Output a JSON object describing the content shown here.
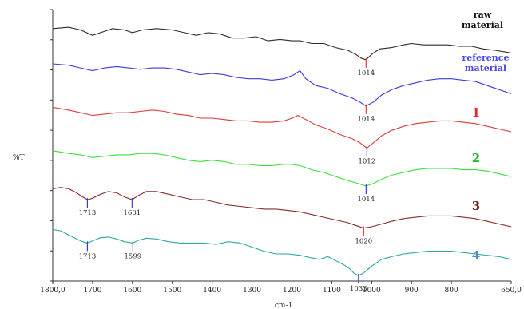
{
  "chart_data": {
    "type": "line",
    "title": "",
    "xlabel": "cm-1",
    "ylabel": "%T",
    "xlim": [
      1800,
      650
    ],
    "x_reversed": true,
    "xticks": [
      "1800,0",
      "1700",
      "1600",
      "1500",
      "1400",
      "1300",
      "1200",
      "1100",
      "1000",
      "900",
      "800",
      "650,0"
    ],
    "xtick_values": [
      1800,
      1700,
      1600,
      1500,
      1400,
      1300,
      1200,
      1100,
      1000,
      900,
      800,
      650
    ],
    "grid": false,
    "series": [
      {
        "name_lines": [
          "raw",
          "material"
        ],
        "color": "#2b2b2b",
        "label_color": "#111111",
        "points": [
          [
            1800,
            0.93
          ],
          [
            1760,
            0.935
          ],
          [
            1730,
            0.925
          ],
          [
            1700,
            0.905
          ],
          [
            1680,
            0.915
          ],
          [
            1650,
            0.93
          ],
          [
            1620,
            0.925
          ],
          [
            1600,
            0.915
          ],
          [
            1575,
            0.925
          ],
          [
            1540,
            0.93
          ],
          [
            1500,
            0.925
          ],
          [
            1470,
            0.915
          ],
          [
            1440,
            0.905
          ],
          [
            1410,
            0.915
          ],
          [
            1380,
            0.91
          ],
          [
            1350,
            0.895
          ],
          [
            1320,
            0.895
          ],
          [
            1290,
            0.9
          ],
          [
            1260,
            0.885
          ],
          [
            1230,
            0.89
          ],
          [
            1200,
            0.885
          ],
          [
            1180,
            0.885
          ],
          [
            1150,
            0.875
          ],
          [
            1120,
            0.875
          ],
          [
            1090,
            0.86
          ],
          [
            1060,
            0.85
          ],
          [
            1040,
            0.835
          ],
          [
            1025,
            0.82
          ],
          [
            1014,
            0.815
          ],
          [
            1000,
            0.835
          ],
          [
            980,
            0.855
          ],
          [
            950,
            0.86
          ],
          [
            920,
            0.87
          ],
          [
            900,
            0.875
          ],
          [
            870,
            0.87
          ],
          [
            840,
            0.87
          ],
          [
            810,
            0.87
          ],
          [
            780,
            0.865
          ],
          [
            750,
            0.865
          ],
          [
            720,
            0.855
          ],
          [
            690,
            0.85
          ],
          [
            650,
            0.84
          ]
        ]
      },
      {
        "name_lines": [
          "reference",
          "material"
        ],
        "color": "#3a3ae0",
        "label_color": "#4a4aee",
        "points": [
          [
            1800,
            0.8
          ],
          [
            1760,
            0.795
          ],
          [
            1730,
            0.785
          ],
          [
            1700,
            0.775
          ],
          [
            1670,
            0.785
          ],
          [
            1640,
            0.79
          ],
          [
            1610,
            0.785
          ],
          [
            1580,
            0.78
          ],
          [
            1550,
            0.785
          ],
          [
            1520,
            0.785
          ],
          [
            1490,
            0.78
          ],
          [
            1460,
            0.77
          ],
          [
            1430,
            0.76
          ],
          [
            1400,
            0.765
          ],
          [
            1370,
            0.76
          ],
          [
            1340,
            0.75
          ],
          [
            1310,
            0.745
          ],
          [
            1280,
            0.745
          ],
          [
            1250,
            0.74
          ],
          [
            1220,
            0.745
          ],
          [
            1195,
            0.76
          ],
          [
            1180,
            0.775
          ],
          [
            1165,
            0.745
          ],
          [
            1140,
            0.72
          ],
          [
            1110,
            0.71
          ],
          [
            1080,
            0.69
          ],
          [
            1050,
            0.675
          ],
          [
            1030,
            0.66
          ],
          [
            1014,
            0.645
          ],
          [
            995,
            0.66
          ],
          [
            975,
            0.685
          ],
          [
            950,
            0.705
          ],
          [
            920,
            0.72
          ],
          [
            890,
            0.73
          ],
          [
            860,
            0.74
          ],
          [
            830,
            0.745
          ],
          [
            800,
            0.745
          ],
          [
            770,
            0.74
          ],
          [
            740,
            0.735
          ],
          [
            710,
            0.72
          ],
          [
            680,
            0.705
          ],
          [
            650,
            0.69
          ]
        ]
      },
      {
        "name_lines": [
          "1"
        ],
        "color": "#e03a3a",
        "label_color": "#e02a2a",
        "points": [
          [
            1800,
            0.64
          ],
          [
            1760,
            0.63
          ],
          [
            1730,
            0.62
          ],
          [
            1700,
            0.61
          ],
          [
            1670,
            0.615
          ],
          [
            1640,
            0.62
          ],
          [
            1610,
            0.62
          ],
          [
            1580,
            0.625
          ],
          [
            1550,
            0.63
          ],
          [
            1520,
            0.625
          ],
          [
            1490,
            0.615
          ],
          [
            1460,
            0.61
          ],
          [
            1430,
            0.6
          ],
          [
            1400,
            0.6
          ],
          [
            1370,
            0.595
          ],
          [
            1340,
            0.59
          ],
          [
            1310,
            0.59
          ],
          [
            1280,
            0.585
          ],
          [
            1250,
            0.585
          ],
          [
            1220,
            0.59
          ],
          [
            1200,
            0.6
          ],
          [
            1185,
            0.61
          ],
          [
            1165,
            0.595
          ],
          [
            1140,
            0.575
          ],
          [
            1110,
            0.56
          ],
          [
            1080,
            0.54
          ],
          [
            1050,
            0.525
          ],
          [
            1030,
            0.51
          ],
          [
            1012,
            0.49
          ],
          [
            995,
            0.51
          ],
          [
            975,
            0.535
          ],
          [
            950,
            0.555
          ],
          [
            920,
            0.57
          ],
          [
            890,
            0.58
          ],
          [
            860,
            0.585
          ],
          [
            830,
            0.59
          ],
          [
            800,
            0.59
          ],
          [
            770,
            0.585
          ],
          [
            740,
            0.58
          ],
          [
            710,
            0.57
          ],
          [
            680,
            0.56
          ],
          [
            650,
            0.55
          ]
        ]
      },
      {
        "name_lines": [
          "2"
        ],
        "color": "#3ae03a",
        "label_color": "#2bb52b",
        "points": [
          [
            1800,
            0.48
          ],
          [
            1760,
            0.47
          ],
          [
            1730,
            0.465
          ],
          [
            1700,
            0.455
          ],
          [
            1670,
            0.46
          ],
          [
            1640,
            0.465
          ],
          [
            1610,
            0.465
          ],
          [
            1580,
            0.47
          ],
          [
            1550,
            0.47
          ],
          [
            1520,
            0.465
          ],
          [
            1490,
            0.455
          ],
          [
            1460,
            0.445
          ],
          [
            1430,
            0.44
          ],
          [
            1400,
            0.445
          ],
          [
            1370,
            0.44
          ],
          [
            1340,
            0.43
          ],
          [
            1310,
            0.43
          ],
          [
            1280,
            0.425
          ],
          [
            1250,
            0.425
          ],
          [
            1220,
            0.43
          ],
          [
            1200,
            0.43
          ],
          [
            1180,
            0.425
          ],
          [
            1150,
            0.41
          ],
          [
            1120,
            0.4
          ],
          [
            1090,
            0.385
          ],
          [
            1060,
            0.37
          ],
          [
            1035,
            0.36
          ],
          [
            1014,
            0.35
          ],
          [
            995,
            0.36
          ],
          [
            975,
            0.375
          ],
          [
            950,
            0.39
          ],
          [
            920,
            0.4
          ],
          [
            890,
            0.41
          ],
          [
            860,
            0.415
          ],
          [
            830,
            0.415
          ],
          [
            800,
            0.415
          ],
          [
            770,
            0.41
          ],
          [
            740,
            0.41
          ],
          [
            710,
            0.405
          ],
          [
            680,
            0.395
          ],
          [
            650,
            0.385
          ]
        ]
      },
      {
        "name_lines": [
          "3"
        ],
        "color": "#8b2a2a",
        "label_color": "#6e1e1e",
        "points": [
          [
            1800,
            0.34
          ],
          [
            1780,
            0.345
          ],
          [
            1760,
            0.34
          ],
          [
            1740,
            0.325
          ],
          [
            1725,
            0.31
          ],
          [
            1713,
            0.3
          ],
          [
            1700,
            0.305
          ],
          [
            1680,
            0.32
          ],
          [
            1660,
            0.33
          ],
          [
            1640,
            0.325
          ],
          [
            1620,
            0.31
          ],
          [
            1601,
            0.3
          ],
          [
            1585,
            0.315
          ],
          [
            1565,
            0.33
          ],
          [
            1540,
            0.33
          ],
          [
            1510,
            0.32
          ],
          [
            1480,
            0.31
          ],
          [
            1450,
            0.3
          ],
          [
            1420,
            0.3
          ],
          [
            1390,
            0.29
          ],
          [
            1360,
            0.28
          ],
          [
            1330,
            0.275
          ],
          [
            1300,
            0.27
          ],
          [
            1270,
            0.265
          ],
          [
            1240,
            0.265
          ],
          [
            1210,
            0.26
          ],
          [
            1180,
            0.255
          ],
          [
            1150,
            0.245
          ],
          [
            1120,
            0.235
          ],
          [
            1090,
            0.225
          ],
          [
            1060,
            0.215
          ],
          [
            1040,
            0.205
          ],
          [
            1020,
            0.195
          ],
          [
            1000,
            0.2
          ],
          [
            975,
            0.21
          ],
          [
            950,
            0.22
          ],
          [
            920,
            0.23
          ],
          [
            890,
            0.235
          ],
          [
            860,
            0.24
          ],
          [
            830,
            0.24
          ],
          [
            800,
            0.24
          ],
          [
            770,
            0.235
          ],
          [
            740,
            0.23
          ],
          [
            710,
            0.22
          ],
          [
            680,
            0.21
          ],
          [
            650,
            0.2
          ]
        ]
      },
      {
        "name_lines": [
          "4"
        ],
        "color": "#2aa8a0",
        "label_color": "#4a8ad0",
        "points": [
          [
            1800,
            0.19
          ],
          [
            1780,
            0.185
          ],
          [
            1760,
            0.17
          ],
          [
            1740,
            0.155
          ],
          [
            1725,
            0.145
          ],
          [
            1713,
            0.14
          ],
          [
            1700,
            0.148
          ],
          [
            1680,
            0.16
          ],
          [
            1660,
            0.162
          ],
          [
            1640,
            0.155
          ],
          [
            1620,
            0.145
          ],
          [
            1599,
            0.14
          ],
          [
            1585,
            0.15
          ],
          [
            1565,
            0.158
          ],
          [
            1540,
            0.155
          ],
          [
            1510,
            0.145
          ],
          [
            1480,
            0.14
          ],
          [
            1450,
            0.14
          ],
          [
            1420,
            0.14
          ],
          [
            1390,
            0.135
          ],
          [
            1360,
            0.145
          ],
          [
            1330,
            0.14
          ],
          [
            1300,
            0.125
          ],
          [
            1270,
            0.11
          ],
          [
            1240,
            0.1
          ],
          [
            1210,
            0.1
          ],
          [
            1180,
            0.095
          ],
          [
            1150,
            0.085
          ],
          [
            1130,
            0.08
          ],
          [
            1110,
            0.09
          ],
          [
            1090,
            0.075
          ],
          [
            1070,
            0.06
          ],
          [
            1055,
            0.045
          ],
          [
            1045,
            0.03
          ],
          [
            1033,
            0.02
          ],
          [
            1020,
            0.03
          ],
          [
            1000,
            0.055
          ],
          [
            975,
            0.08
          ],
          [
            950,
            0.09
          ],
          [
            920,
            0.1
          ],
          [
            890,
            0.105
          ],
          [
            860,
            0.11
          ],
          [
            830,
            0.11
          ],
          [
            800,
            0.11
          ],
          [
            770,
            0.105
          ],
          [
            740,
            0.1
          ],
          [
            710,
            0.095
          ],
          [
            680,
            0.09
          ],
          [
            650,
            0.08
          ]
        ]
      }
    ],
    "peak_annotations": [
      {
        "x": 1014,
        "y": 0.815,
        "text": "1014",
        "color": "#e03a3a"
      },
      {
        "x": 1014,
        "y": 0.645,
        "text": "1014",
        "color": "#e03a3a"
      },
      {
        "x": 1012,
        "y": 0.49,
        "text": "1012",
        "color": "#3a3ae0"
      },
      {
        "x": 1014,
        "y": 0.35,
        "text": "1014",
        "color": "#3a3ae0"
      },
      {
        "x": 1713,
        "y": 0.3,
        "text": "1713",
        "color": "#3a3ae0"
      },
      {
        "x": 1601,
        "y": 0.3,
        "text": "1601",
        "color": "#3a3ae0"
      },
      {
        "x": 1020,
        "y": 0.195,
        "text": "1020",
        "color": "#e03a3a"
      },
      {
        "x": 1713,
        "y": 0.14,
        "text": "1713",
        "color": "#3a3ae0"
      },
      {
        "x": 1599,
        "y": 0.14,
        "text": "1599",
        "color": "#e03a3a"
      },
      {
        "x": 1033,
        "y": 0.02,
        "text": "1033",
        "color": "#3a3ae0"
      }
    ]
  }
}
